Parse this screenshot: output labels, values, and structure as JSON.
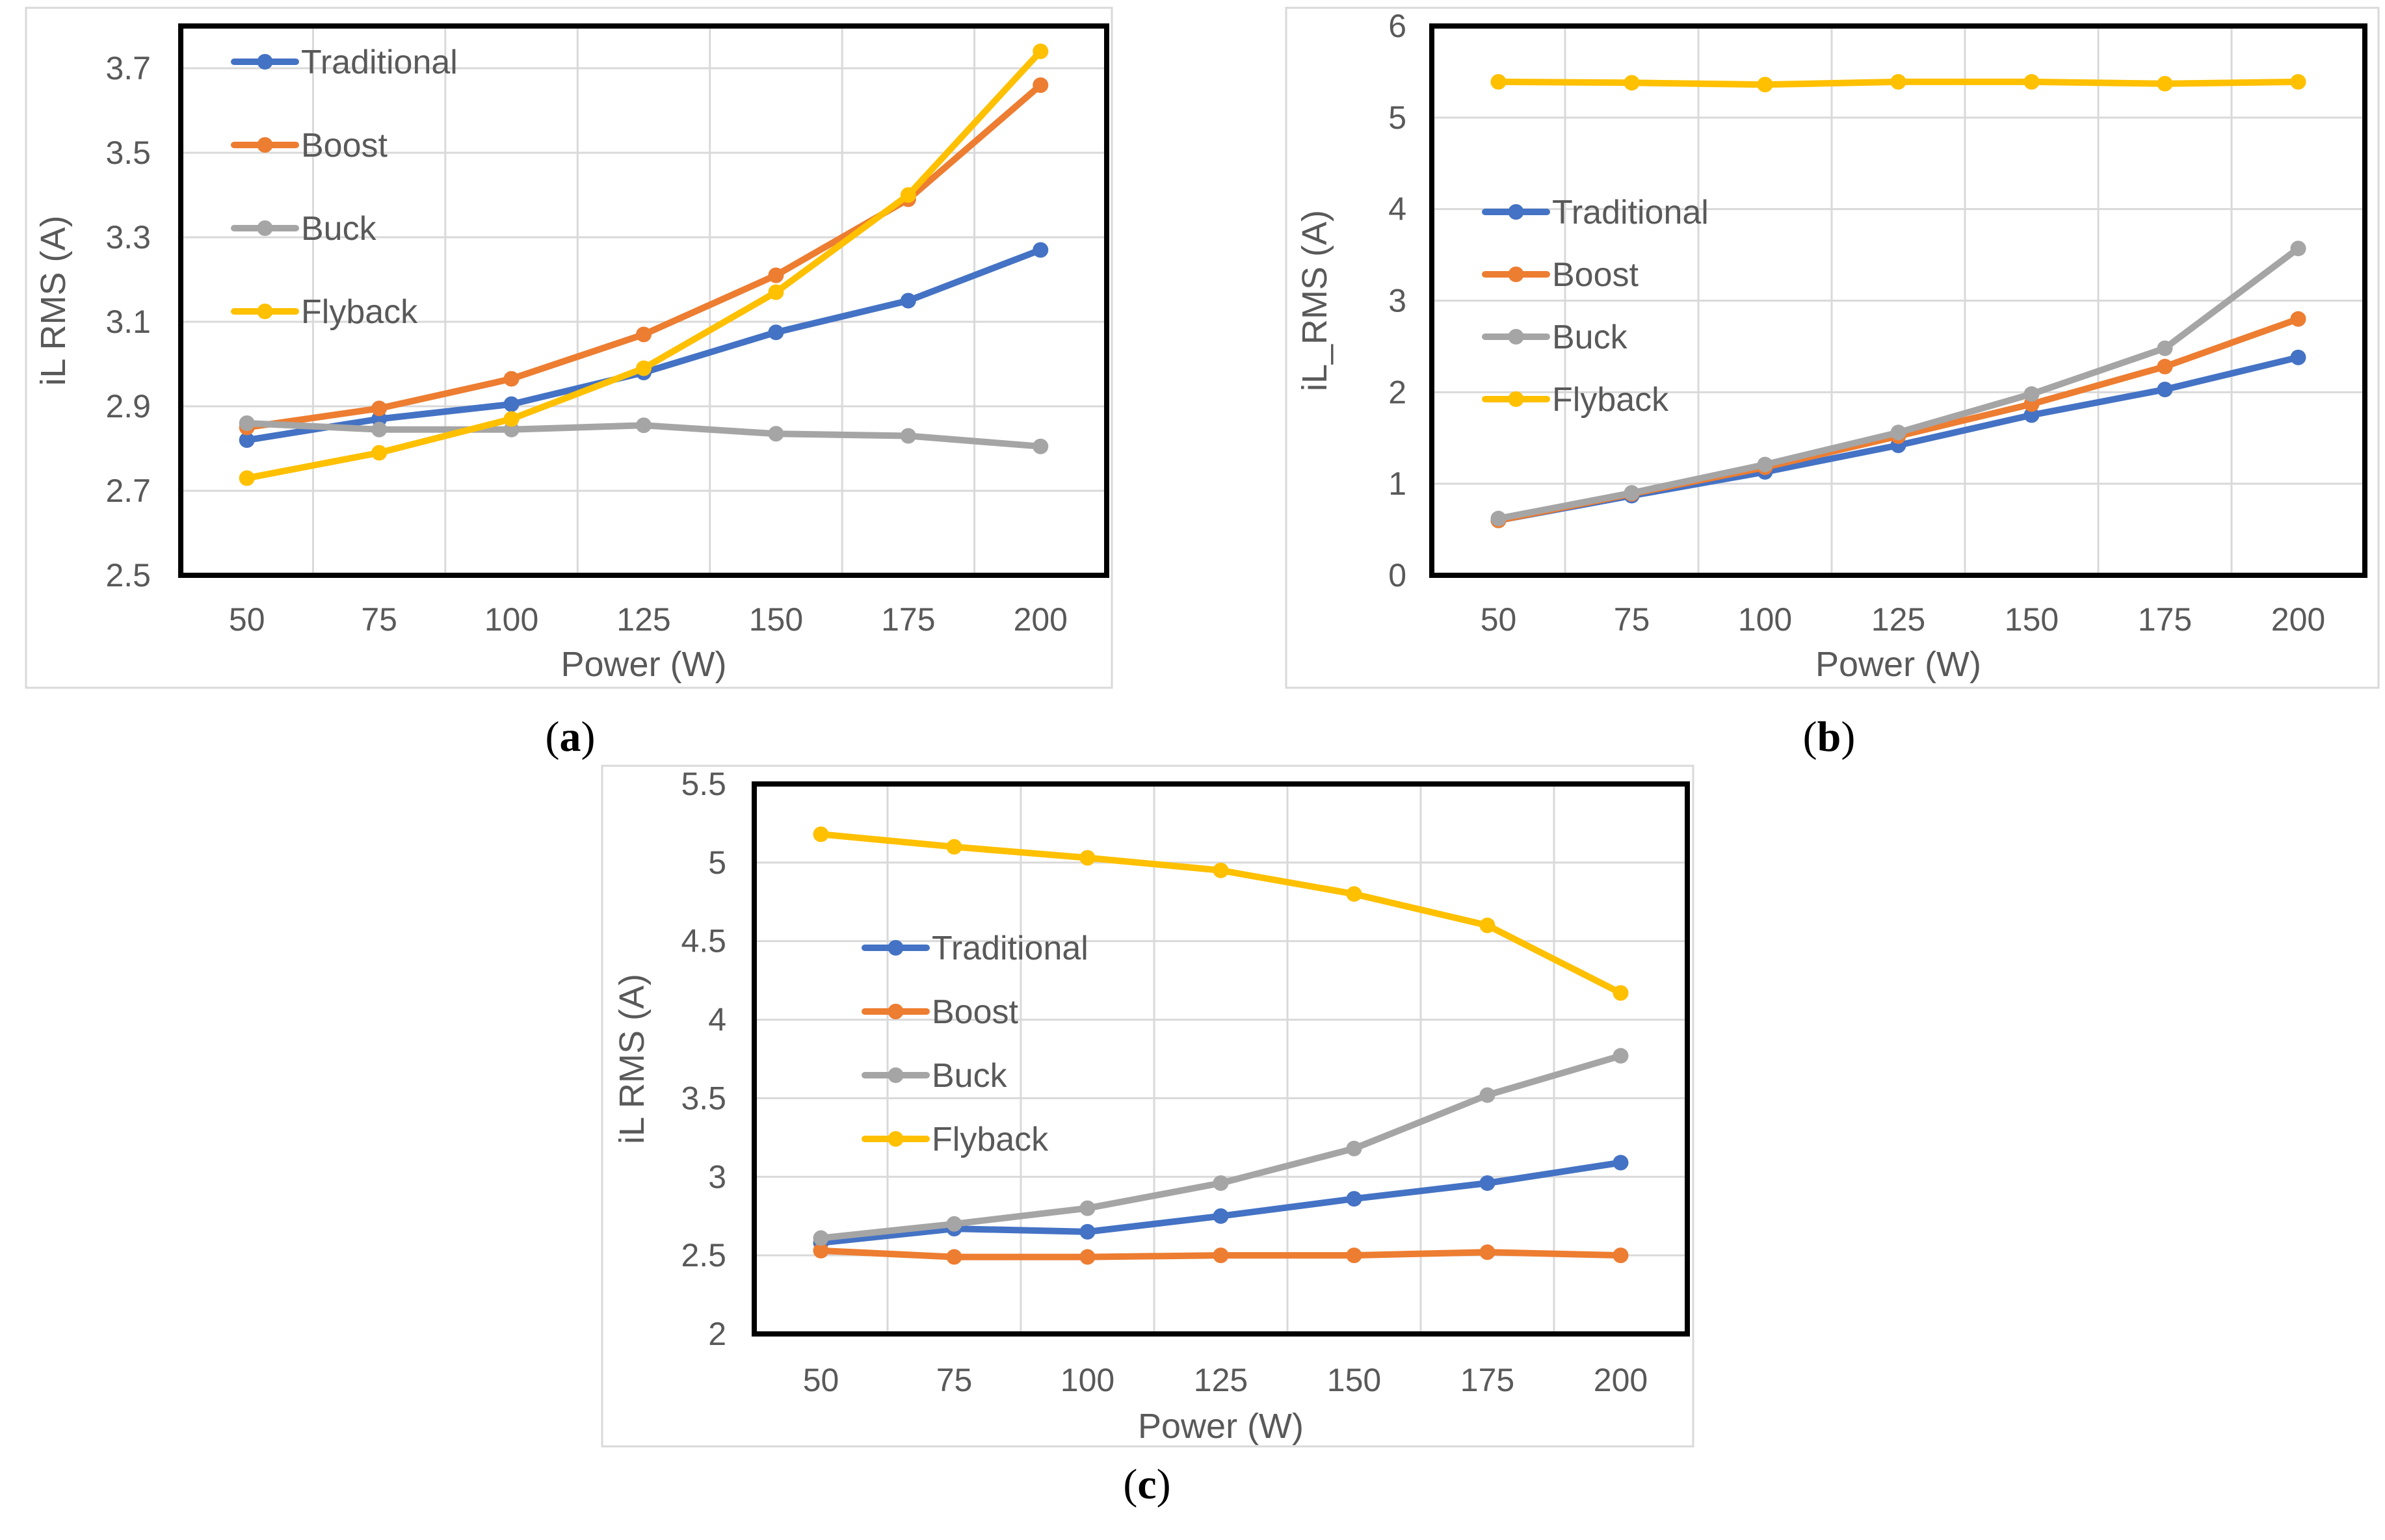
{
  "figure": {
    "series_colors": {
      "Traditional": "#4472C4",
      "Boost": "#ED7D31",
      "Buck": "#A5A5A5",
      "Flyback": "#FFC000"
    },
    "axis_color": "#000000",
    "grid_color": "#D9D9D9",
    "label_color": "#595959"
  },
  "chart_data": [
    {
      "panel": "a",
      "type": "line",
      "caption": "(a)",
      "caption_letter": "a",
      "xlabel": "Power (W)",
      "ylabel": "iL RMS (A)",
      "categories": [
        "50",
        "75",
        "100",
        "125",
        "150",
        "175",
        "200"
      ],
      "ylim": [
        2.5,
        3.8
      ],
      "yticks": [
        2.5,
        2.7,
        2.9,
        3.1,
        3.3,
        3.5,
        3.7
      ],
      "ytick_labels": [
        "2.5",
        "2.7",
        "2.9",
        "3.1",
        "3.3",
        "3.5",
        "3.7"
      ],
      "legend_position": "top-left",
      "series": [
        {
          "name": "Traditional",
          "values": [
            2.82,
            2.87,
            2.905,
            2.98,
            3.075,
            3.15,
            3.27
          ]
        },
        {
          "name": "Boost",
          "values": [
            2.85,
            2.895,
            2.965,
            3.07,
            3.21,
            3.39,
            3.66
          ]
        },
        {
          "name": "Buck",
          "values": [
            2.86,
            2.845,
            2.845,
            2.855,
            2.835,
            2.83,
            2.805
          ]
        },
        {
          "name": "Flyback",
          "values": [
            2.73,
            2.79,
            2.87,
            2.99,
            3.17,
            3.4,
            3.74
          ]
        }
      ]
    },
    {
      "panel": "b",
      "type": "line",
      "caption": "(b)",
      "caption_letter": "b",
      "xlabel": "Power (W)",
      "ylabel": "iL_RMS (A)",
      "categories": [
        "50",
        "75",
        "100",
        "125",
        "150",
        "175",
        "200"
      ],
      "ylim": [
        0,
        6
      ],
      "yticks": [
        0,
        1,
        2,
        3,
        4,
        5,
        6
      ],
      "ytick_labels": [
        "0",
        "1",
        "2",
        "3",
        "4",
        "5",
        "6"
      ],
      "legend_position": "middle-left",
      "series": [
        {
          "name": "Traditional",
          "values": [
            0.6,
            0.87,
            1.13,
            1.42,
            1.75,
            2.03,
            2.38
          ]
        },
        {
          "name": "Boost",
          "values": [
            0.6,
            0.89,
            1.18,
            1.52,
            1.87,
            2.28,
            2.8
          ]
        },
        {
          "name": "Buck",
          "values": [
            0.62,
            0.9,
            1.21,
            1.56,
            1.98,
            2.48,
            3.57
          ]
        },
        {
          "name": "Flyback",
          "values": [
            5.39,
            5.38,
            5.36,
            5.39,
            5.39,
            5.37,
            5.39
          ]
        }
      ]
    },
    {
      "panel": "c",
      "type": "line",
      "caption": "(c)",
      "caption_letter": "c",
      "xlabel": "Power (W)",
      "ylabel": "iL RMS (A)",
      "categories": [
        "50",
        "75",
        "100",
        "125",
        "150",
        "175",
        "200"
      ],
      "ylim": [
        2,
        5.5
      ],
      "yticks": [
        2,
        2.5,
        3,
        3.5,
        4,
        4.5,
        5,
        5.5
      ],
      "ytick_labels": [
        "2",
        "2.5",
        "3",
        "3.5",
        "4",
        "4.5",
        "5",
        "5.5"
      ],
      "legend_position": "middle-left",
      "series": [
        {
          "name": "Traditional",
          "values": [
            2.58,
            2.67,
            2.65,
            2.75,
            2.86,
            2.96,
            3.09
          ]
        },
        {
          "name": "Boost",
          "values": [
            2.53,
            2.49,
            2.49,
            2.5,
            2.5,
            2.52,
            2.5
          ]
        },
        {
          "name": "Buck",
          "values": [
            2.61,
            2.7,
            2.8,
            2.96,
            3.18,
            3.52,
            3.77
          ]
        },
        {
          "name": "Flyback",
          "values": [
            5.18,
            5.1,
            5.03,
            4.95,
            4.8,
            4.6,
            4.17
          ]
        }
      ]
    }
  ]
}
